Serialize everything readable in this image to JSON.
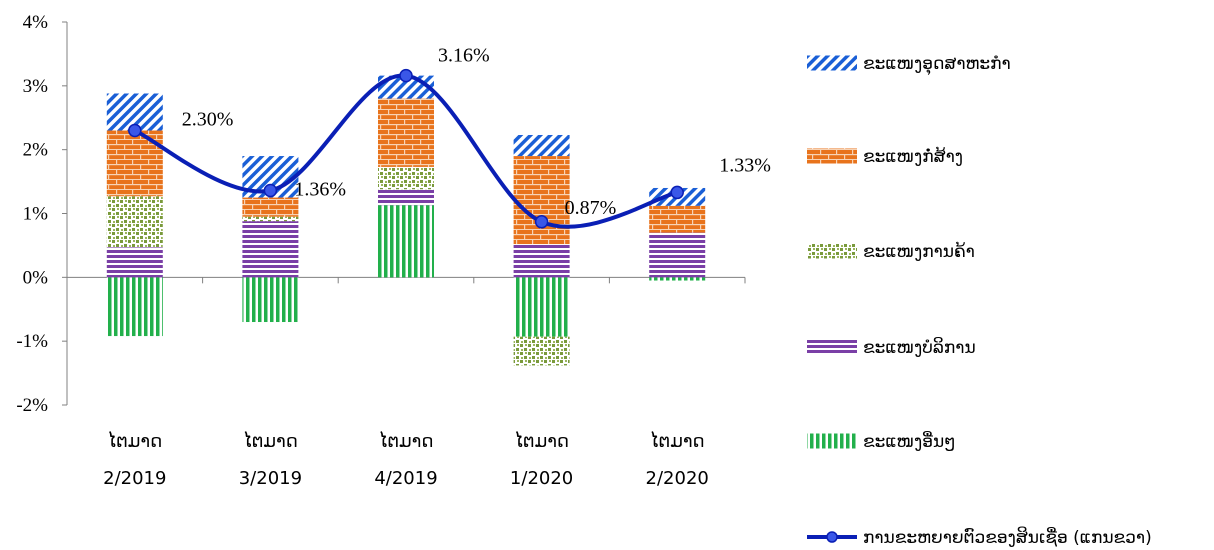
{
  "chart_data": {
    "type": "bar",
    "subtype": "stacked-bar-with-line",
    "title": "",
    "categories": [
      [
        "ໄຕມາດ",
        "2/2019"
      ],
      [
        "ໄຕມາດ",
        "3/2019"
      ],
      [
        "ໄຕມາດ",
        "4/2019"
      ],
      [
        "ໄຕມາດ",
        "1/2020"
      ],
      [
        "ໄຕມາດ",
        "2/2020"
      ]
    ],
    "y_ticks": [
      "4%",
      "3%",
      "2%",
      "1%",
      "0%",
      "-1%",
      "-2%"
    ],
    "ylim": [
      -2,
      4
    ],
    "grid": false,
    "legend_position": "right",
    "series": [
      {
        "name": "ຂະແໜງອື່ນໆ",
        "kind": "bar",
        "pattern": "vertical-stripes",
        "color": "#22b04b",
        "values": [
          -0.92,
          -0.7,
          1.13,
          -0.93,
          -0.05
        ]
      },
      {
        "name": "ຂະແໜງບໍລິການ",
        "kind": "bar",
        "pattern": "horizontal-stripes",
        "color": "#7a3fa6",
        "values": [
          0.47,
          0.88,
          0.25,
          0.52,
          0.7
        ]
      },
      {
        "name": "ຂະແໜງການຄ້າ",
        "kind": "bar",
        "pattern": "dots",
        "color": "#7a9a3c",
        "values": [
          0.8,
          0.07,
          0.35,
          -0.45,
          0.0
        ]
      },
      {
        "name": "ຂະແໜງກໍ່ສ້າງ",
        "kind": "bar",
        "pattern": "bricks",
        "color": "#e8731c",
        "values": [
          1.03,
          0.3,
          1.07,
          1.38,
          0.42
        ]
      },
      {
        "name": "ຂະແໜງອຸດສາຫະກຳ",
        "kind": "bar",
        "pattern": "diagonal-stripes",
        "color": "#1a5fd6",
        "values": [
          0.58,
          0.65,
          0.36,
          0.33,
          0.28
        ]
      }
    ],
    "line": {
      "name": "ການຂະຫຍາຍຕົວຂອງສິນເຊື່ອ (ແກນຂວາ)",
      "color": "#0a1fb5",
      "values": [
        2.3,
        1.36,
        3.16,
        0.87,
        1.33
      ],
      "labels": [
        "2.30%",
        "1.36%",
        "3.16%",
        "0.87%",
        "1.33%"
      ]
    },
    "legend_order": [
      "ຂະແໜງອຸດສາຫະກຳ",
      "ຂະແໜງກໍ່ສ້າງ",
      "ຂະແໜງການຄ້າ",
      "ຂະແໜງບໍລິການ",
      "ຂະແໜງອື່ນໆ",
      "ການຂະຫຍາຍຕົວຂອງສິນເຊື່ອ (ແກນຂວາ)"
    ]
  }
}
